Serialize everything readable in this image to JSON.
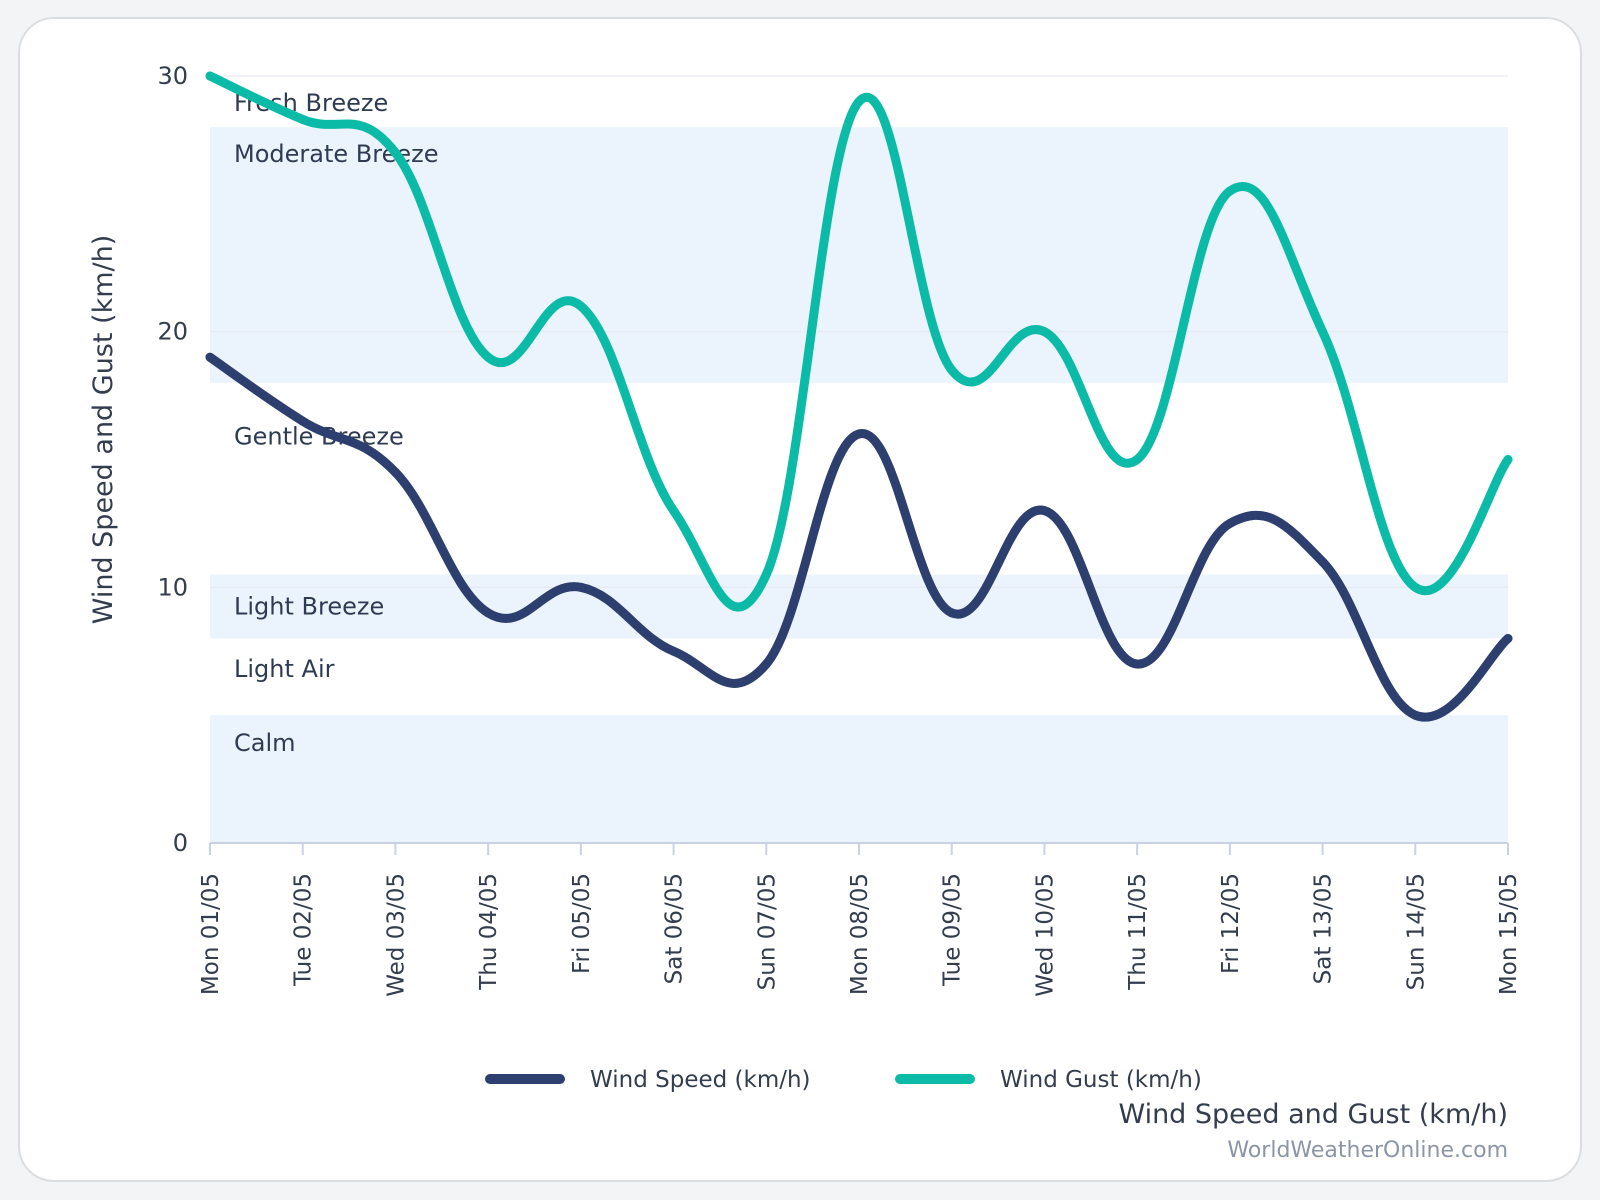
{
  "chart_data": {
    "type": "line",
    "ylabel": "Wind Speed and Gust (km/h)",
    "caption": "Wind Speed and Gust (km/h)",
    "credit": "WorldWeatherOnline.com",
    "ylim": [
      0,
      30
    ],
    "yticks": [
      "0",
      "10",
      "20",
      "30"
    ],
    "categories": [
      "Mon 01/05",
      "Tue 02/05",
      "Wed 03/05",
      "Thu 04/05",
      "Fri 05/05",
      "Sat 06/05",
      "Sun 07/05",
      "Mon 08/05",
      "Tue 09/05",
      "Wed 10/05",
      "Thu 11/05",
      "Fri 12/05",
      "Sat 13/05",
      "Sun 14/05",
      "Mon 15/05"
    ],
    "series": [
      {
        "name": "Wind Speed (km/h)",
        "color": "#2d3f6f",
        "values": [
          19,
          16.5,
          14.5,
          9,
          10,
          7.5,
          7,
          16,
          9,
          13,
          7,
          12.5,
          11,
          5,
          8
        ]
      },
      {
        "name": "Wind Gust (km/h)",
        "color": "#0bbba8",
        "values": [
          30,
          28.3,
          27,
          19,
          21,
          13,
          10.5,
          29,
          18.5,
          20,
          15,
          25.5,
          20,
          10,
          15
        ]
      }
    ],
    "bands": [
      {
        "label": "Calm",
        "from": 0,
        "to": 5,
        "shaded": true
      },
      {
        "label": "Light Air",
        "from": 5,
        "to": 8,
        "shaded": false
      },
      {
        "label": "Light Breeze",
        "from": 8,
        "to": 10.5,
        "shaded": true
      },
      {
        "label": "Gentle Breeze",
        "from": 10.5,
        "to": 18,
        "shaded": false
      },
      {
        "label": "Moderate Breeze",
        "from": 18,
        "to": 28,
        "shaded": true
      },
      {
        "label": "Fresh Breeze",
        "from": 28,
        "to": 30,
        "shaded": false
      }
    ],
    "grid": true,
    "legend_position": "bottom-center"
  }
}
